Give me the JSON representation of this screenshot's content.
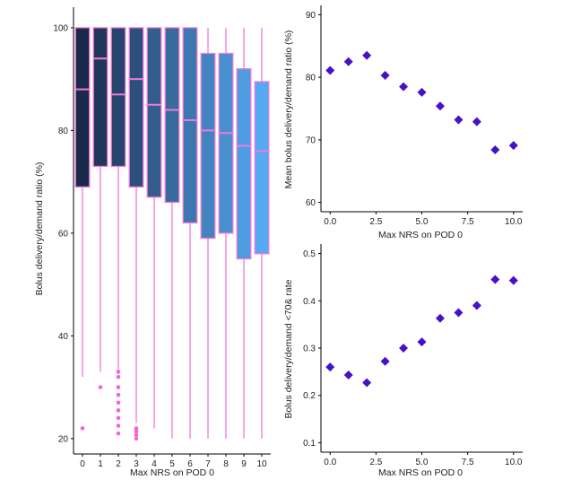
{
  "colors": {
    "box_outline": "#f07ad9",
    "outlier": "#f066cf",
    "point": "#4711c9",
    "box_fill_start": "#1a2a4a",
    "box_fill_end": "#55aaf2",
    "axis": "#000000"
  },
  "chart_data": [
    {
      "type": "box",
      "xlabel": "Max NRS on POD 0",
      "ylabel": "Bolus delivery/demand ratio (%)",
      "ylim": [
        17,
        104
      ],
      "yticks": [
        20,
        40,
        60,
        80,
        100
      ],
      "categories": [
        "0",
        "1",
        "2",
        "3",
        "4",
        "5",
        "6",
        "7",
        "8",
        "9",
        "10"
      ],
      "boxes": [
        {
          "q1": 69,
          "median": 88,
          "q3": 100,
          "whisker_low": 32,
          "whisker_high": 100,
          "outliers": [
            22
          ]
        },
        {
          "q1": 73,
          "median": 94,
          "q3": 100,
          "whisker_low": 33,
          "whisker_high": 100,
          "outliers": [
            30
          ]
        },
        {
          "q1": 73,
          "median": 87,
          "q3": 100,
          "whisker_low": 33,
          "whisker_high": 100,
          "outliers": [
            21,
            22.5,
            24,
            25.5,
            27,
            28.5,
            30,
            32,
            33
          ]
        },
        {
          "q1": 69,
          "median": 90,
          "q3": 100,
          "whisker_low": 23,
          "whisker_high": 100,
          "outliers": [
            20,
            20.7,
            21.4,
            22
          ]
        },
        {
          "q1": 67,
          "median": 85,
          "q3": 100,
          "whisker_low": 22,
          "whisker_high": 100,
          "outliers": []
        },
        {
          "q1": 66,
          "median": 84,
          "q3": 100,
          "whisker_low": 20,
          "whisker_high": 100,
          "outliers": []
        },
        {
          "q1": 62,
          "median": 82,
          "q3": 100,
          "whisker_low": 20,
          "whisker_high": 100,
          "outliers": []
        },
        {
          "q1": 59,
          "median": 80,
          "q3": 95,
          "whisker_low": 20,
          "whisker_high": 100,
          "outliers": []
        },
        {
          "q1": 60,
          "median": 79.5,
          "q3": 95,
          "whisker_low": 20,
          "whisker_high": 100,
          "outliers": []
        },
        {
          "q1": 55,
          "median": 77,
          "q3": 92,
          "whisker_low": 20,
          "whisker_high": 100,
          "outliers": []
        },
        {
          "q1": 56,
          "median": 76,
          "q3": 89.5,
          "whisker_low": 20,
          "whisker_high": 100,
          "outliers": []
        }
      ]
    },
    {
      "type": "scatter",
      "xlabel": "Max NRS on POD 0",
      "ylabel": "Mean bolus delivery/demand ratio (%)",
      "xlim": [
        -0.5,
        10.5
      ],
      "ylim": [
        58.5,
        91.5
      ],
      "xticks": [
        0,
        2.5,
        5,
        7.5,
        10
      ],
      "xtick_labels": [
        "0.0",
        "2.5",
        "5.0",
        "7.5",
        "10.0"
      ],
      "yticks": [
        60,
        70,
        80,
        90
      ],
      "ytick_labels": [
        "60",
        "70",
        "80",
        "90"
      ],
      "x": [
        0,
        1,
        2,
        3,
        4,
        5,
        6,
        7,
        8,
        9,
        10
      ],
      "y": [
        81.1,
        82.5,
        83.5,
        80.3,
        78.5,
        77.6,
        75.4,
        73.2,
        72.9,
        68.4,
        69.1
      ]
    },
    {
      "type": "scatter",
      "xlabel": "Max NRS on POD 0",
      "ylabel": "Bolus delivery/demand <70& rate",
      "xlim": [
        -0.5,
        10.5
      ],
      "ylim": [
        0.08,
        0.52
      ],
      "xticks": [
        0,
        2.5,
        5,
        7.5,
        10
      ],
      "xtick_labels": [
        "0.0",
        "2.5",
        "5.0",
        "7.5",
        "10.0"
      ],
      "yticks": [
        0.1,
        0.2,
        0.3,
        0.4,
        0.5
      ],
      "ytick_labels": [
        "0.1",
        "0.2",
        "0.3",
        "0.4",
        "0.5"
      ],
      "x": [
        0,
        1,
        2,
        3,
        4,
        5,
        6,
        7,
        8,
        9,
        10
      ],
      "y": [
        0.26,
        0.243,
        0.227,
        0.272,
        0.3,
        0.313,
        0.363,
        0.375,
        0.39,
        0.445,
        0.443
      ]
    }
  ]
}
